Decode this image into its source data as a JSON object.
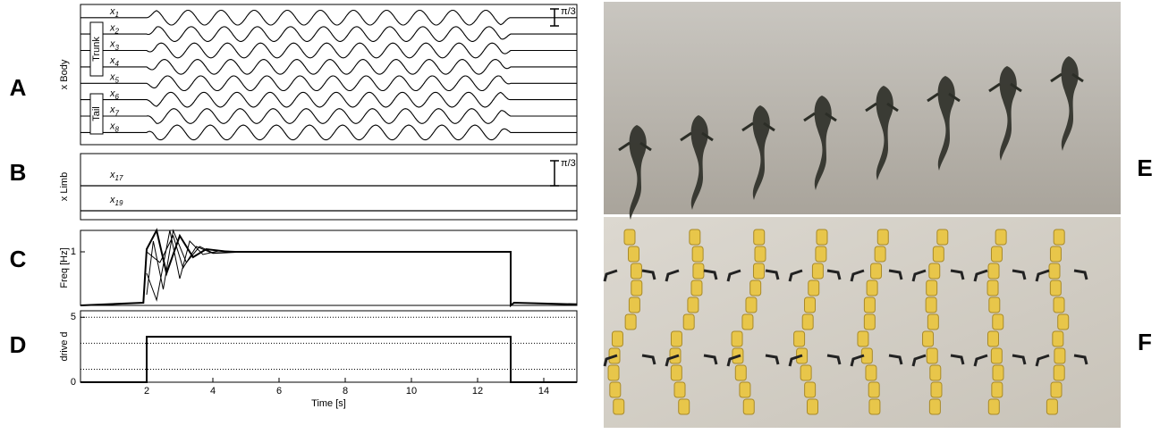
{
  "panel_labels": [
    "A",
    "B",
    "C",
    "D",
    "E",
    "F"
  ],
  "chart_data": [
    {
      "type": "oscillation",
      "ylabel": "x Body",
      "xlim": [
        0,
        15
      ],
      "onset": 2,
      "offset": 13,
      "frequency": 1,
      "series": [
        {
          "label": "x",
          "subscript": "1"
        },
        {
          "label": "x",
          "subscript": "2"
        },
        {
          "label": "x",
          "subscript": "3"
        },
        {
          "label": "x",
          "subscript": "4"
        },
        {
          "label": "x",
          "subscript": "5"
        },
        {
          "label": "x",
          "subscript": "6"
        },
        {
          "label": "x",
          "subscript": "7"
        },
        {
          "label": "x",
          "subscript": "8"
        }
      ],
      "groups": [
        "Trunk",
        "Tail"
      ],
      "scale_bar": "π/3"
    },
    {
      "type": "flat",
      "ylabel": "x Limb",
      "xlim": [
        0,
        15
      ],
      "series": [
        {
          "label": "x",
          "subscript": "17"
        },
        {
          "label": "x",
          "subscript": "19"
        }
      ],
      "scale_bar": "π/3"
    },
    {
      "type": "line",
      "ylabel": "Freq [Hz]",
      "xlim": [
        0,
        15
      ],
      "ylim": [
        0,
        1.4
      ],
      "yticks": [
        1
      ],
      "series": [
        {
          "color": "#000000",
          "x": [
            0,
            1.9,
            2,
            2.3,
            2.6,
            3,
            3.4,
            3.8,
            4.5,
            13,
            13,
            13.1,
            15
          ],
          "values": [
            0,
            0.05,
            1.05,
            1.4,
            0.6,
            1.3,
            0.9,
            1.05,
            1.0,
            1.0,
            0,
            0.05,
            0.02
          ]
        },
        {
          "color": "#000000",
          "x": [
            2,
            2.2,
            2.5,
            2.8,
            3.2,
            3.6,
            4,
            5
          ],
          "values": [
            0.2,
            1.2,
            0.3,
            1.4,
            0.8,
            1.1,
            0.98,
            1.0
          ]
        },
        {
          "color": "#000000",
          "x": [
            2,
            2.3,
            2.7,
            3,
            3.3,
            3.7,
            4.2,
            5
          ],
          "values": [
            0.6,
            0.1,
            1.4,
            0.5,
            1.2,
            0.95,
            1.02,
            1.0
          ]
        },
        {
          "color": "#000000",
          "x": [
            2,
            2.4,
            2.8,
            3.1,
            3.5,
            4,
            5
          ],
          "values": [
            1.0,
            0.8,
            1.3,
            0.7,
            1.1,
            0.97,
            1.0
          ]
        }
      ]
    },
    {
      "type": "line",
      "ylabel": "drive d",
      "xlabel": "Time [s]",
      "xlim": [
        0,
        15
      ],
      "ylim": [
        0,
        5.5
      ],
      "yticks": [
        0,
        5
      ],
      "xticks": [
        2,
        4,
        6,
        8,
        10,
        12,
        14
      ],
      "reference_lines": [
        1,
        3,
        5
      ],
      "series": [
        {
          "color": "#000000",
          "x": [
            0,
            2,
            2,
            13,
            13,
            15
          ],
          "values": [
            0,
            0,
            3.5,
            3.5,
            0,
            0
          ]
        }
      ]
    }
  ]
}
